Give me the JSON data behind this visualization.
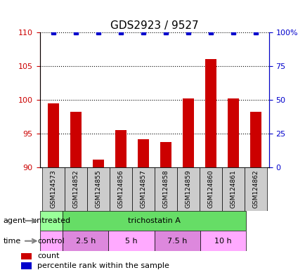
{
  "title": "GDS2923 / 9527",
  "samples": [
    "GSM124573",
    "GSM124852",
    "GSM124855",
    "GSM124856",
    "GSM124857",
    "GSM124858",
    "GSM124859",
    "GSM124860",
    "GSM124861",
    "GSM124862"
  ],
  "counts": [
    99.5,
    98.2,
    91.2,
    95.5,
    94.2,
    93.8,
    100.2,
    106.0,
    100.2,
    98.2
  ],
  "percentile_ranks": [
    100,
    100,
    100,
    100,
    100,
    100,
    100,
    100,
    100,
    100
  ],
  "bar_color": "#cc0000",
  "dot_color": "#0000cc",
  "ylim_left": [
    90,
    110
  ],
  "ylim_right": [
    0,
    100
  ],
  "yticks_left": [
    90,
    95,
    100,
    105,
    110
  ],
  "yticks_right": [
    0,
    25,
    50,
    75,
    100
  ],
  "ytick_labels_left": [
    "90",
    "95",
    "100",
    "105",
    "110"
  ],
  "ytick_labels_right": [
    "0",
    "25",
    "50",
    "75",
    "100%"
  ],
  "agent_labels": [
    {
      "text": "untreated",
      "start": 0,
      "end": 1,
      "color": "#99ff99"
    },
    {
      "text": "trichostatin A",
      "start": 1,
      "end": 9,
      "color": "#66dd66"
    }
  ],
  "time_labels": [
    {
      "text": "control",
      "start": 0,
      "end": 1,
      "color": "#ffaaff"
    },
    {
      "text": "2.5 h",
      "start": 1,
      "end": 3,
      "color": "#dd88dd"
    },
    {
      "text": "5 h",
      "start": 3,
      "end": 5,
      "color": "#ffaaff"
    },
    {
      "text": "7.5 h",
      "start": 5,
      "end": 7,
      "color": "#dd88dd"
    },
    {
      "text": "10 h",
      "start": 7,
      "end": 9,
      "color": "#ffaaff"
    }
  ],
  "legend_count_color": "#cc0000",
  "legend_pct_color": "#0000cc",
  "background_color": "#ffffff",
  "grid_color": "#000000",
  "row_label_agent": "agent",
  "row_label_time": "time"
}
